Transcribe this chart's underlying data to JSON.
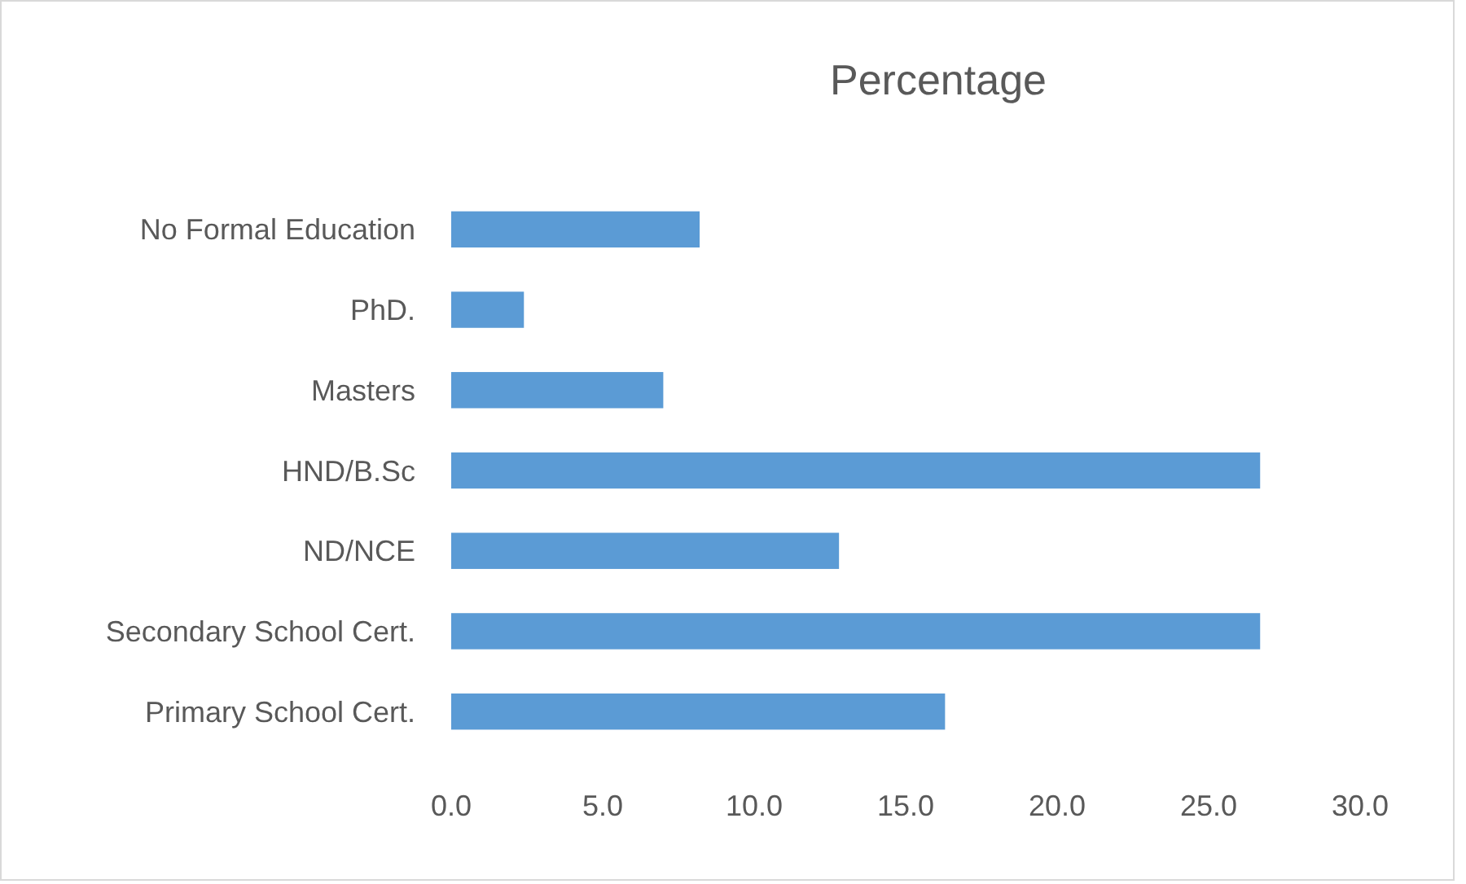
{
  "chart_data": {
    "type": "bar",
    "title": "Percentage",
    "orientation": "horizontal",
    "categories": [
      "No Formal Education",
      "PhD.",
      "Masters",
      "HND/B.Sc",
      "ND/NCE",
      "Secondary School Cert.",
      "Primary School Cert."
    ],
    "values": [
      8.2,
      2.4,
      7.0,
      26.7,
      12.8,
      26.7,
      16.3
    ],
    "color": "#5b9bd5",
    "xlim": [
      0,
      30
    ],
    "xticks": [
      {
        "value": 0,
        "label": "0.0"
      },
      {
        "value": 5,
        "label": "5.0"
      },
      {
        "value": 10,
        "label": "10.0"
      },
      {
        "value": 15,
        "label": "15.0"
      },
      {
        "value": 20,
        "label": "20.0"
      },
      {
        "value": 25,
        "label": "25.0"
      },
      {
        "value": 30,
        "label": "30.0"
      }
    ],
    "grid": false
  }
}
